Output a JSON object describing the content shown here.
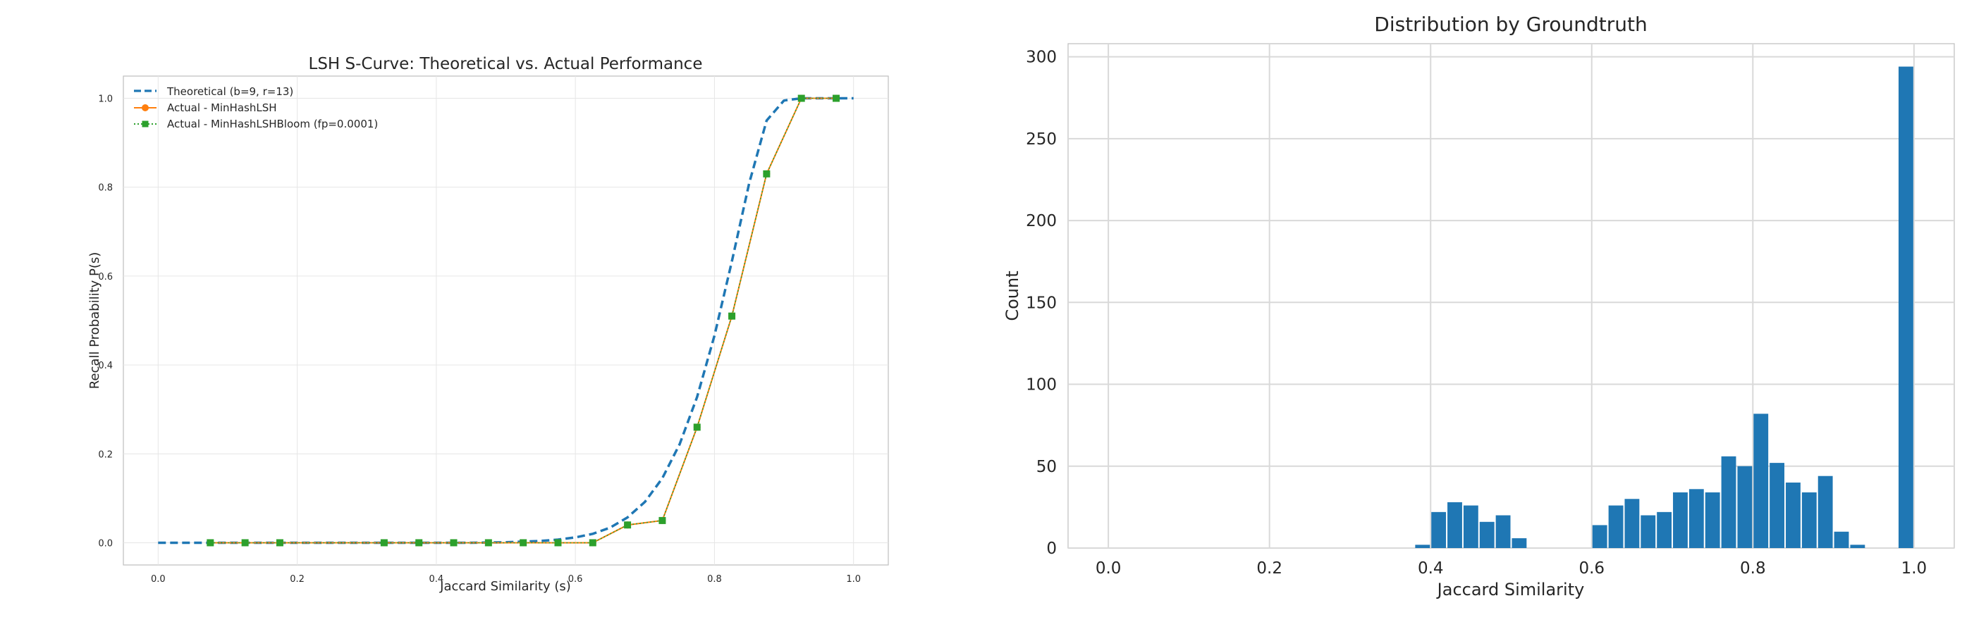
{
  "chart_data": [
    {
      "type": "line",
      "title": "LSH S-Curve: Theoretical vs. Actual Performance",
      "xlabel": "Jaccard Similarity (s)",
      "ylabel": "Recall Probability P(s)",
      "xlim": [
        -0.05,
        1.05
      ],
      "ylim": [
        -0.05,
        1.05
      ],
      "xticks": [
        "0.0",
        "0.2",
        "0.4",
        "0.6",
        "0.8",
        "1.0"
      ],
      "yticks": [
        "0.0",
        "0.2",
        "0.4",
        "0.6",
        "0.8",
        "1.0"
      ],
      "grid": true,
      "legend_position": "top-left",
      "series": [
        {
          "name": "Theoretical (b=9, r=13)",
          "style": "dashed",
          "color": "#1f77b4",
          "x": [
            0.0,
            0.05,
            0.1,
            0.15,
            0.2,
            0.25,
            0.3,
            0.35,
            0.4,
            0.45,
            0.5,
            0.55,
            0.575,
            0.6,
            0.625,
            0.65,
            0.675,
            0.7,
            0.725,
            0.75,
            0.775,
            0.8,
            0.825,
            0.85,
            0.875,
            0.9,
            0.925,
            0.95,
            0.975,
            1.0
          ],
          "y": [
            0.0,
            0.0,
            0.0,
            0.0,
            0.0,
            0.0,
            0.0,
            0.0,
            0.0,
            0.0,
            0.001,
            0.004,
            0.007,
            0.012,
            0.02,
            0.034,
            0.057,
            0.092,
            0.145,
            0.222,
            0.328,
            0.466,
            0.633,
            0.809,
            0.95,
            0.995,
            1.0,
            1.0,
            1.0,
            1.0
          ]
        },
        {
          "name": "Actual - MinHashLSH",
          "style": "solid",
          "marker": "circle",
          "color": "#ff7f0e",
          "x": [
            0.075,
            0.125,
            0.175,
            0.325,
            0.375,
            0.425,
            0.475,
            0.525,
            0.575,
            0.625,
            0.675,
            0.725,
            0.775,
            0.825,
            0.875,
            0.925,
            0.975
          ],
          "y": [
            0.0,
            0.0,
            0.0,
            0.0,
            0.0,
            0.0,
            0.0,
            0.0,
            0.0,
            0.0,
            0.04,
            0.05,
            0.26,
            0.51,
            0.83,
            1.0,
            1.0
          ]
        },
        {
          "name": "Actual - MinHashLSHBloom (fp=0.0001)",
          "style": "dotted",
          "marker": "square",
          "color": "#2ca02c",
          "x": [
            0.075,
            0.125,
            0.175,
            0.325,
            0.375,
            0.425,
            0.475,
            0.525,
            0.575,
            0.625,
            0.675,
            0.725,
            0.775,
            0.825,
            0.875,
            0.925,
            0.975
          ],
          "y": [
            0.0,
            0.0,
            0.0,
            0.0,
            0.0,
            0.0,
            0.0,
            0.0,
            0.0,
            0.0,
            0.04,
            0.05,
            0.26,
            0.51,
            0.83,
            1.0,
            1.0
          ]
        }
      ]
    },
    {
      "type": "bar",
      "title": "Distribution by Groundtruth",
      "xlabel": "Jaccard Similarity",
      "ylabel": "Count",
      "xlim": [
        -0.05,
        1.05
      ],
      "ylim": [
        0,
        308
      ],
      "xticks": [
        "0.0",
        "0.2",
        "0.4",
        "0.6",
        "0.8",
        "1.0"
      ],
      "yticks": [
        "0",
        "50",
        "100",
        "150",
        "200",
        "250",
        "300"
      ],
      "grid": true,
      "color": "#1f77b4",
      "bin_width": 0.02,
      "bins": [
        {
          "x": 0.38,
          "count": 2
        },
        {
          "x": 0.4,
          "count": 22
        },
        {
          "x": 0.42,
          "count": 28
        },
        {
          "x": 0.44,
          "count": 26
        },
        {
          "x": 0.46,
          "count": 16
        },
        {
          "x": 0.48,
          "count": 20
        },
        {
          "x": 0.5,
          "count": 6
        },
        {
          "x": 0.6,
          "count": 14
        },
        {
          "x": 0.62,
          "count": 26
        },
        {
          "x": 0.64,
          "count": 30
        },
        {
          "x": 0.66,
          "count": 20
        },
        {
          "x": 0.68,
          "count": 22
        },
        {
          "x": 0.7,
          "count": 34
        },
        {
          "x": 0.72,
          "count": 36
        },
        {
          "x": 0.74,
          "count": 34
        },
        {
          "x": 0.76,
          "count": 56
        },
        {
          "x": 0.78,
          "count": 50
        },
        {
          "x": 0.8,
          "count": 82
        },
        {
          "x": 0.82,
          "count": 52
        },
        {
          "x": 0.84,
          "count": 40
        },
        {
          "x": 0.86,
          "count": 34
        },
        {
          "x": 0.88,
          "count": 44
        },
        {
          "x": 0.9,
          "count": 10
        },
        {
          "x": 0.92,
          "count": 2
        },
        {
          "x": 0.98,
          "count": 294
        }
      ]
    }
  ]
}
